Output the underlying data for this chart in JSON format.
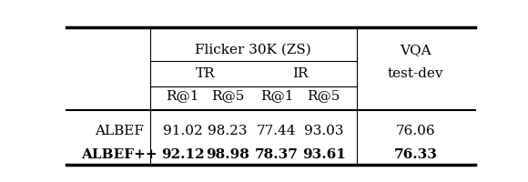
{
  "col_headers": [
    "R@1",
    "R@5",
    "R@1",
    "R@5"
  ],
  "vqa_header": "test-dev",
  "flickr_header": "Flicker 30K (ZS)",
  "vqa_label": "VQA",
  "tr_label": "TR",
  "ir_label": "IR",
  "row_labels": [
    "ALBEF",
    "ALBEF++"
  ],
  "data": [
    [
      "91.02",
      "98.23",
      "77.44",
      "93.03",
      "76.06"
    ],
    [
      "92.12",
      "98.98",
      "78.37",
      "93.61",
      "76.33"
    ]
  ],
  "bold_rows": [
    1
  ],
  "bg_color": "#ffffff",
  "text_color": "#000000",
  "font_size": 11
}
